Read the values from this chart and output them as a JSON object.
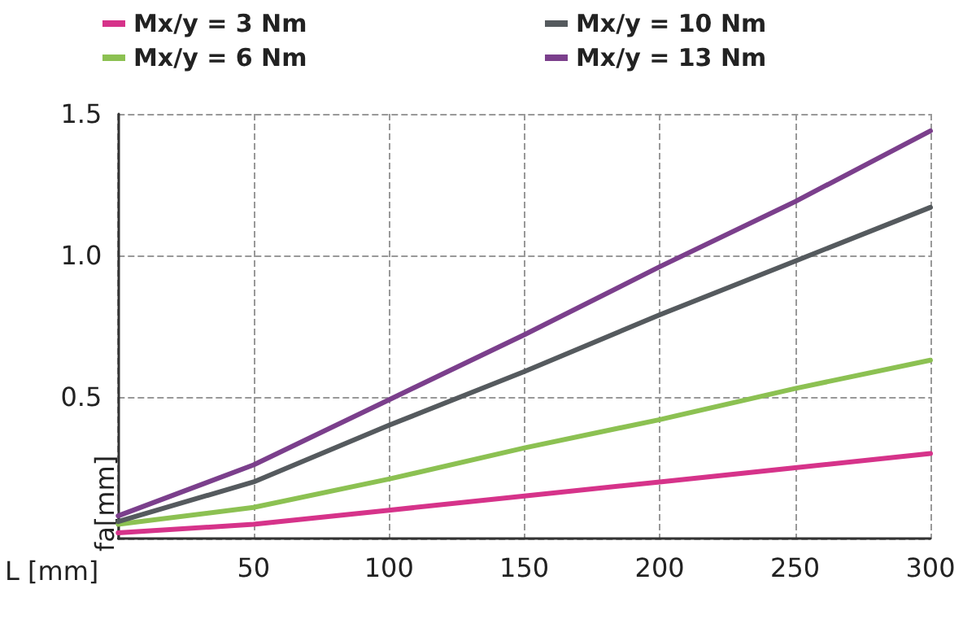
{
  "chart_data": {
    "type": "line",
    "xlabel": "L [mm]",
    "ylabel": "fa[mm]",
    "x": [
      0,
      50,
      100,
      150,
      200,
      250,
      300
    ],
    "series": [
      {
        "name": "Mx/y = 3 Nm",
        "color": "#d6338a",
        "values": [
          0.02,
          0.05,
          0.1,
          0.15,
          0.2,
          0.25,
          0.3
        ]
      },
      {
        "name": "Mx/y = 6 Nm",
        "color": "#8cc152",
        "values": [
          0.05,
          0.11,
          0.21,
          0.32,
          0.42,
          0.53,
          0.63
        ]
      },
      {
        "name": "Mx/y = 10 Nm",
        "color": "#555a5e",
        "values": [
          0.06,
          0.2,
          0.4,
          0.59,
          0.79,
          0.98,
          1.17
        ]
      },
      {
        "name": "Mx/y = 13 Nm",
        "color": "#7b3f8c",
        "values": [
          0.08,
          0.26,
          0.49,
          0.72,
          0.96,
          1.19,
          1.44
        ]
      }
    ],
    "xlim": [
      0,
      300
    ],
    "xticks": [
      {
        "value": 0,
        "label": null
      },
      50,
      100,
      150,
      200,
      250,
      300
    ],
    "ylim": [
      0,
      1.5
    ],
    "yticks": [
      {
        "value": 0,
        "label": null
      },
      {
        "value": 0.5,
        "label": "0.5"
      },
      {
        "value": 1,
        "label": "1.0"
      },
      1.5
    ],
    "grid": true,
    "legend": "top",
    "marker": "none",
    "line_style": "solid"
  }
}
